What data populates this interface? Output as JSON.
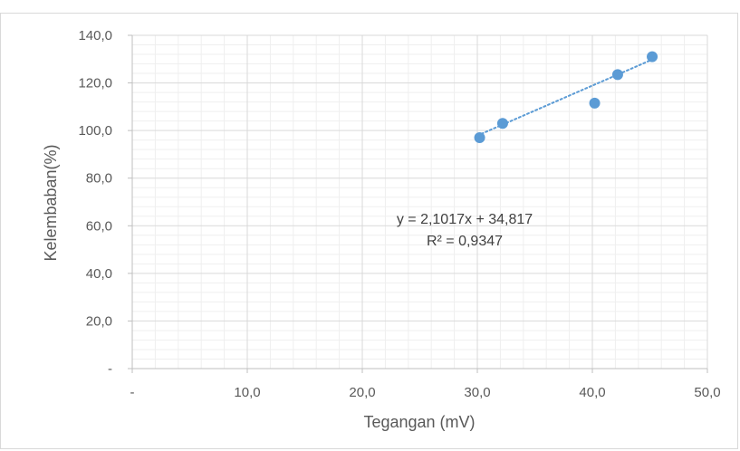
{
  "chart_data": {
    "type": "scatter",
    "xlabel": "Tegangan (mV)",
    "ylabel": "Kelembaban(%)",
    "xlim": [
      0,
      50
    ],
    "ylim": [
      0,
      140
    ],
    "x_ticks": [
      "-",
      "10,0",
      "20,0",
      "30,0",
      "40,0",
      "50,0"
    ],
    "y_ticks": [
      "-",
      "20,0",
      "40,0",
      "60,0",
      "80,0",
      "100,0",
      "120,0",
      "140,0"
    ],
    "grid": true,
    "series": [
      {
        "x": [
          30.2,
          32.2,
          40.2,
          42.2,
          45.2
        ],
        "y": [
          97.0,
          103.0,
          111.5,
          123.5,
          131.0
        ],
        "color": "#5b9bd5"
      }
    ],
    "trendline": {
      "type": "linear",
      "slope": 2.1017,
      "intercept": 34.817,
      "x_range": [
        30.2,
        45.2
      ],
      "style": "dotted",
      "color": "#5b9bd5",
      "equation_label": "y = 2,1017x + 34,817",
      "r2_label": "R² = 0,9347"
    }
  }
}
